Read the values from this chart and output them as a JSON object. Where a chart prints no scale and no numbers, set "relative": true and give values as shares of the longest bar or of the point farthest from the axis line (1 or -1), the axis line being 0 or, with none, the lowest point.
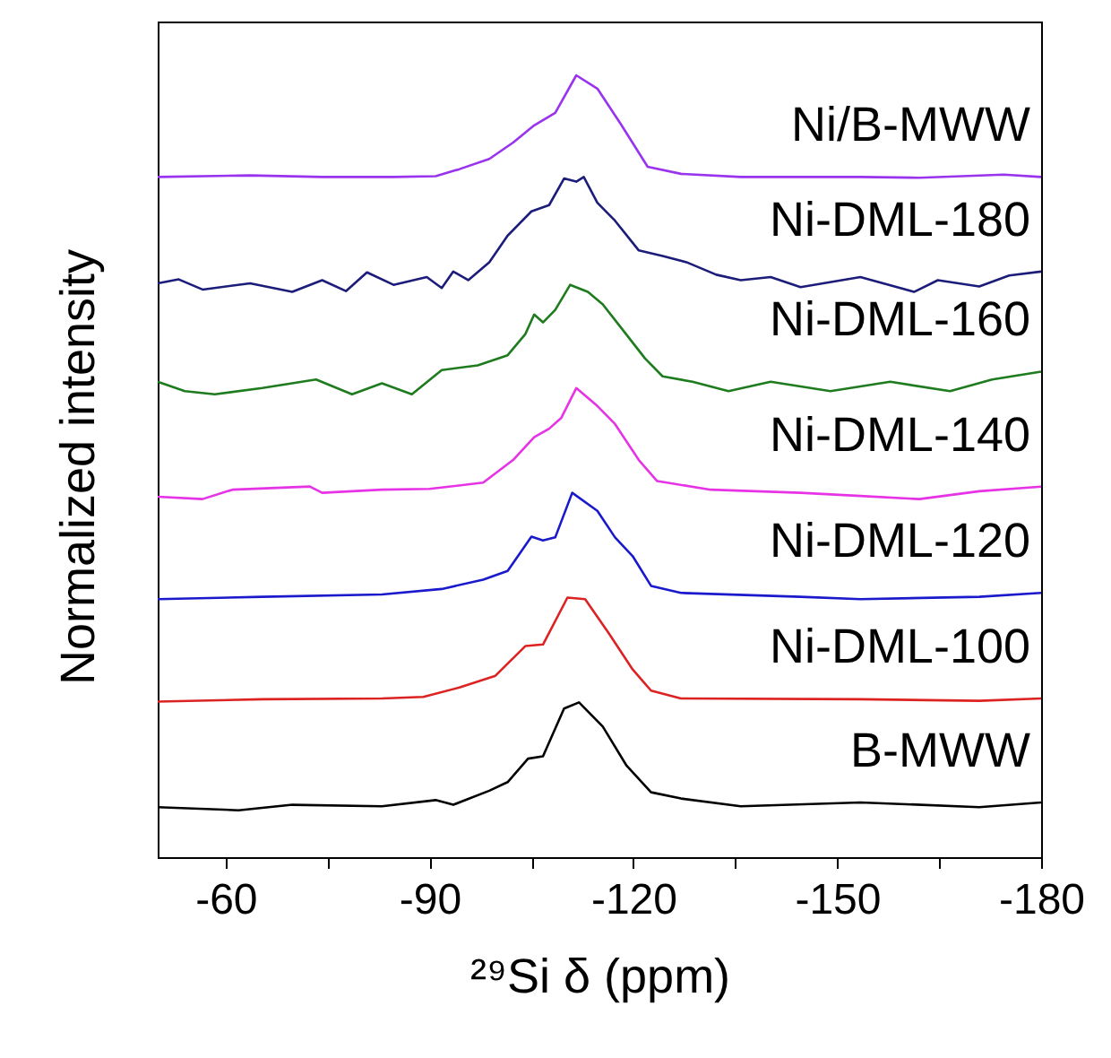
{
  "chart_data": {
    "type": "line",
    "xlabel": "²⁹Si δ (ppm)",
    "ylabel": "Normalized intensity",
    "relative": true,
    "xlim": [
      -50,
      -180
    ],
    "xticks": [
      -60,
      {
        "value": -75,
        "label": null
      },
      -90,
      {
        "value": -105,
        "label": null
      },
      -120,
      {
        "value": -135,
        "label": null
      },
      -150,
      {
        "value": -165,
        "label": null
      },
      -180
    ],
    "series": [
      {
        "name": "Ni/B-MWW",
        "color": "#9933ee",
        "x": [
          -50,
          -63.6,
          -74.2,
          -84.7,
          -90.9,
          -94.4,
          -98.8,
          -102.3,
          -105.4,
          -108.5,
          -111.6,
          -114.7,
          -118.2,
          -122.1,
          -127.0,
          -135.8,
          -153.4,
          -162.1,
          -174.5,
          -180
        ],
        "values": [
          0.87,
          0.872,
          0.87,
          0.87,
          0.871,
          0.88,
          0.893,
          0.914,
          0.936,
          0.952,
          1.0,
          0.983,
          0.937,
          0.883,
          0.874,
          0.87,
          0.87,
          0.869,
          0.873,
          0.87
        ]
      },
      {
        "name": "Ni-DML-180",
        "color": "#1c1c7a",
        "x": [
          -50,
          -53.1,
          -56.6,
          -63.6,
          -69.8,
          -74.2,
          -77.7,
          -80.8,
          -84.7,
          -89.6,
          -91.8,
          -93.5,
          -95.7,
          -98.8,
          -101.5,
          -105.0,
          -107.6,
          -109.8,
          -111.6,
          -112.7,
          -114.7,
          -117.3,
          -120.8,
          -124.3,
          -127.8,
          -132.2,
          -135.8,
          -140.2,
          -144.6,
          -153.4,
          -161.3,
          -164.8,
          -170.9,
          -175.3,
          -180
        ],
        "values": [
          0.734,
          0.739,
          0.726,
          0.734,
          0.723,
          0.738,
          0.724,
          0.748,
          0.732,
          0.742,
          0.728,
          0.749,
          0.738,
          0.761,
          0.795,
          0.826,
          0.834,
          0.868,
          0.864,
          0.87,
          0.837,
          0.814,
          0.776,
          0.769,
          0.761,
          0.745,
          0.738,
          0.742,
          0.729,
          0.742,
          0.723,
          0.738,
          0.73,
          0.744,
          0.749
        ]
      },
      {
        "name": "Ni-DML-160",
        "color": "#1e7b1e",
        "x": [
          -50,
          -54.0,
          -58.4,
          -65.4,
          -73.3,
          -78.6,
          -83.0,
          -87.4,
          -91.8,
          -97.1,
          -101.5,
          -104.1,
          -105.4,
          -106.7,
          -108.5,
          -110.7,
          -113.3,
          -115.5,
          -118.2,
          -121.7,
          -124.3,
          -128.7,
          -134.0,
          -140.2,
          -149.0,
          -157.8,
          -166.6,
          -172.8,
          -180
        ],
        "values": [
          0.608,
          0.596,
          0.592,
          0.6,
          0.611,
          0.592,
          0.606,
          0.592,
          0.623,
          0.629,
          0.642,
          0.669,
          0.694,
          0.684,
          0.7,
          0.732,
          0.723,
          0.707,
          0.677,
          0.638,
          0.615,
          0.608,
          0.596,
          0.608,
          0.596,
          0.608,
          0.596,
          0.611,
          0.621
        ]
      },
      {
        "name": "Ni-DML-140",
        "color": "#e633e6",
        "x": [
          -50,
          -56.6,
          -61.0,
          -72.4,
          -74.2,
          -83.0,
          -90.0,
          -97.9,
          -102.3,
          -105.4,
          -107.6,
          -109.4,
          -111.6,
          -114.7,
          -117.3,
          -120.8,
          -123.5,
          -131.4,
          -144.6,
          -153.4,
          -162.1,
          -170.9,
          -180
        ],
        "values": [
          0.461,
          0.458,
          0.47,
          0.474,
          0.466,
          0.47,
          0.471,
          0.479,
          0.508,
          0.537,
          0.548,
          0.562,
          0.6,
          0.577,
          0.554,
          0.508,
          0.481,
          0.47,
          0.466,
          0.462,
          0.458,
          0.468,
          0.474
        ]
      },
      {
        "name": "Ni-DML-120",
        "color": "#1a1acc",
        "x": [
          -50,
          -65.4,
          -83.0,
          -91.8,
          -97.9,
          -101.5,
          -105.0,
          -106.7,
          -108.5,
          -111.0,
          -114.7,
          -117.3,
          -119.9,
          -122.6,
          -127.0,
          -144.6,
          -153.4,
          -170.9,
          -180
        ],
        "values": [
          0.33,
          0.333,
          0.336,
          0.343,
          0.355,
          0.366,
          0.41,
          0.405,
          0.409,
          0.466,
          0.443,
          0.409,
          0.385,
          0.347,
          0.338,
          0.333,
          0.33,
          0.333,
          0.338
        ]
      },
      {
        "name": "Ni-DML-100",
        "color": "#dd2222",
        "x": [
          -50,
          -65.4,
          -83.0,
          -89.1,
          -94.4,
          -99.7,
          -104.1,
          -106.7,
          -110.3,
          -112.9,
          -116.4,
          -119.9,
          -122.6,
          -127.0,
          -153.4,
          -170.9,
          -180
        ],
        "values": [
          0.199,
          0.202,
          0.203,
          0.205,
          0.217,
          0.232,
          0.27,
          0.272,
          0.332,
          0.33,
          0.286,
          0.24,
          0.213,
          0.203,
          0.202,
          0.2,
          0.203
        ]
      },
      {
        "name": "B-MWW",
        "color": "#000000",
        "x": [
          -50,
          -61.9,
          -69.8,
          -83.0,
          -90.9,
          -93.5,
          -98.8,
          -101.5,
          -104.5,
          -106.7,
          -109.8,
          -112.0,
          -115.5,
          -119.0,
          -122.6,
          -127.0,
          -135.8,
          -153.4,
          -170.9,
          -180
        ],
        "values": [
          0.064,
          0.06,
          0.067,
          0.065,
          0.073,
          0.067,
          0.085,
          0.096,
          0.126,
          0.129,
          0.19,
          0.198,
          0.167,
          0.117,
          0.083,
          0.075,
          0.065,
          0.07,
          0.064,
          0.07
        ]
      }
    ]
  }
}
